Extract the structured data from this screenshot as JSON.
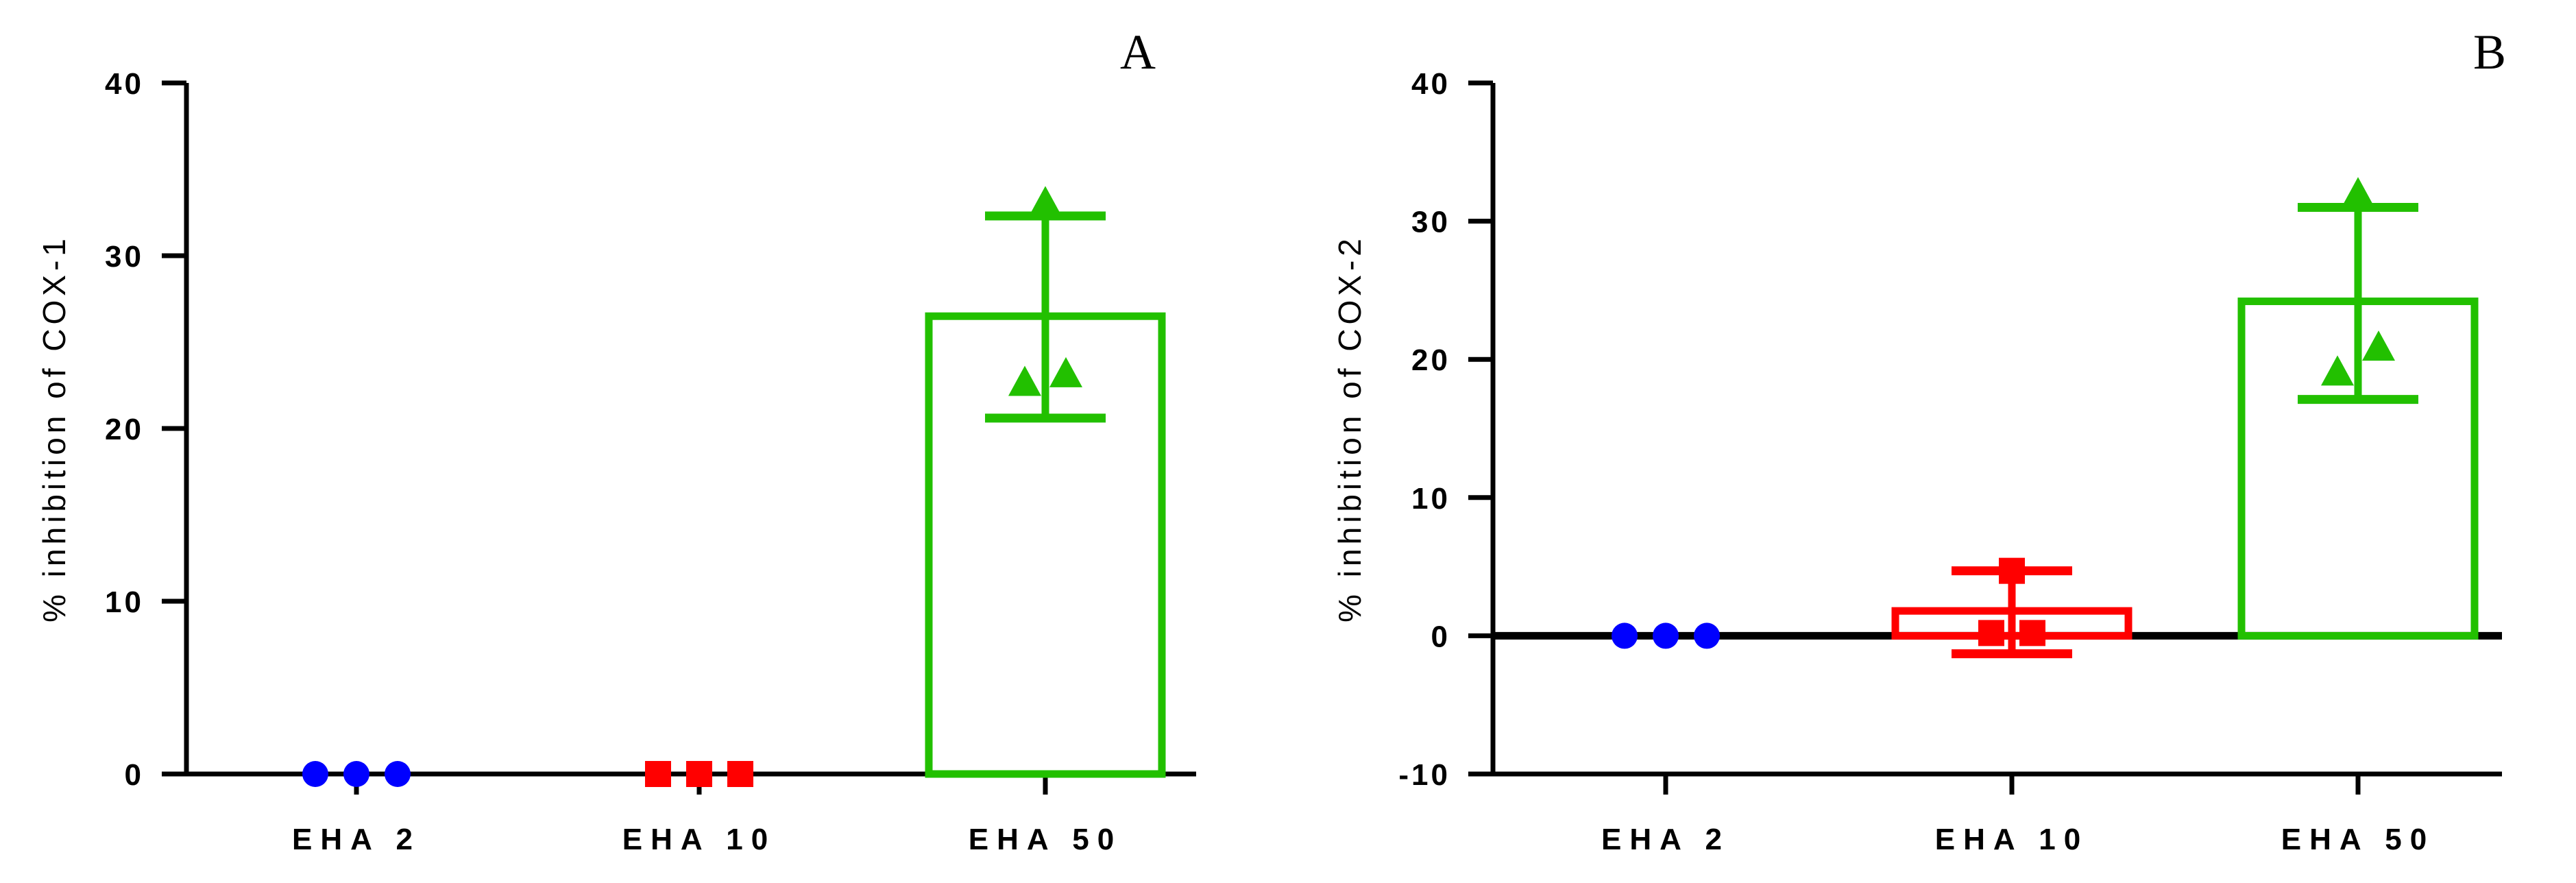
{
  "chart_data": [
    {
      "type": "bar",
      "panel_label": "A",
      "ylabel": "% inhibition of COX-1",
      "ylim": [
        0,
        40
      ],
      "yticks": [
        "0",
        "10",
        "20",
        "30",
        "40"
      ],
      "categories": [
        "EHA 2",
        "EHA 10",
        "EHA 50"
      ],
      "colors": [
        "#0000ff",
        "#ff0000",
        "#22c000"
      ],
      "markers": [
        "circle",
        "square",
        "triangle"
      ],
      "bar_style": "outlined",
      "zero_line": false,
      "values": [
        0,
        0,
        26.5
      ],
      "error_bars": [
        {
          "low": 0,
          "high": 0
        },
        {
          "low": 0,
          "high": 0
        },
        {
          "low": 20.6,
          "high": 32.3
        }
      ],
      "points": [
        [
          0,
          0,
          0
        ],
        [
          0,
          0,
          0
        ],
        [
          33.0,
          22.6,
          23.1
        ]
      ]
    },
    {
      "type": "bar",
      "panel_label": "B",
      "ylabel": "% inhibition of COX-2",
      "ylim": [
        -10,
        40
      ],
      "yticks": [
        "-10",
        "0",
        "10",
        "20",
        "30",
        "40"
      ],
      "categories": [
        "EHA 2",
        "EHA 10",
        "EHA 50"
      ],
      "colors": [
        "#0000ff",
        "#ff0000",
        "#22c000"
      ],
      "markers": [
        "circle",
        "square",
        "triangle"
      ],
      "bar_style": "outlined",
      "zero_line": true,
      "values": [
        0,
        1.8,
        24.2
      ],
      "error_bars": [
        {
          "low": 0,
          "high": 0
        },
        {
          "low": -1.3,
          "high": 4.7
        },
        {
          "low": 17.1,
          "high": 31.0
        }
      ],
      "points": [
        [
          0,
          0,
          0
        ],
        [
          4.7,
          0.2,
          0.2
        ],
        [
          31.9,
          19.0,
          20.8
        ]
      ]
    }
  ]
}
